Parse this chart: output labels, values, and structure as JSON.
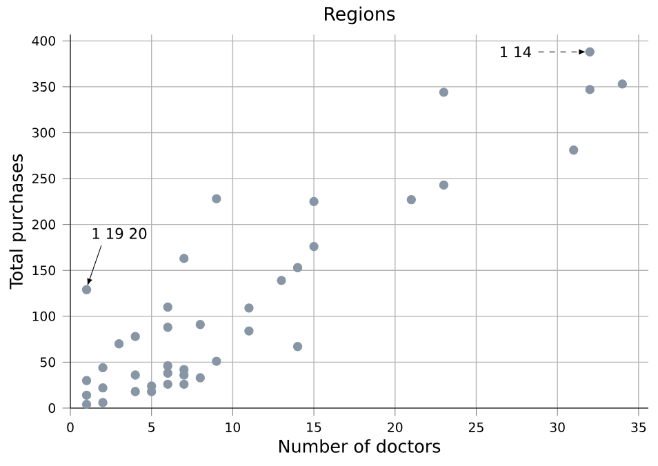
{
  "chart_data": {
    "type": "scatter",
    "title": "Regions",
    "xlabel": "Number of doctors",
    "ylabel": "Total purchases",
    "x": [
      1,
      1,
      1,
      1,
      2,
      2,
      2,
      3,
      4,
      4,
      4,
      5,
      5,
      6,
      6,
      6,
      6,
      6,
      7,
      7,
      7,
      7,
      8,
      8,
      9,
      9,
      11,
      11,
      13,
      14,
      14,
      15,
      15,
      21,
      23,
      23,
      31,
      32,
      32,
      34
    ],
    "values": [
      129,
      30,
      14,
      4,
      44,
      22,
      6,
      70,
      78,
      36,
      18,
      24,
      18,
      110,
      88,
      46,
      38,
      26,
      163,
      42,
      36,
      26,
      91,
      33,
      228,
      51,
      109,
      84,
      139,
      153,
      67,
      225,
      176,
      227,
      344,
      243,
      281,
      388,
      347,
      353
    ],
    "color": "#8795a4",
    "grid": true,
    "xlim": [
      0,
      35.6
    ],
    "ylim": [
      0,
      407
    ],
    "xticks": [
      0,
      5,
      10,
      15,
      20,
      25,
      30,
      35
    ],
    "yticks": [
      0,
      50,
      100,
      150,
      200,
      250,
      300,
      350,
      400
    ],
    "annotations": [
      {
        "text": "1 19 20",
        "x": 1,
        "y": 129
      },
      {
        "text": "1 14",
        "x": 32,
        "y": 388
      }
    ]
  }
}
